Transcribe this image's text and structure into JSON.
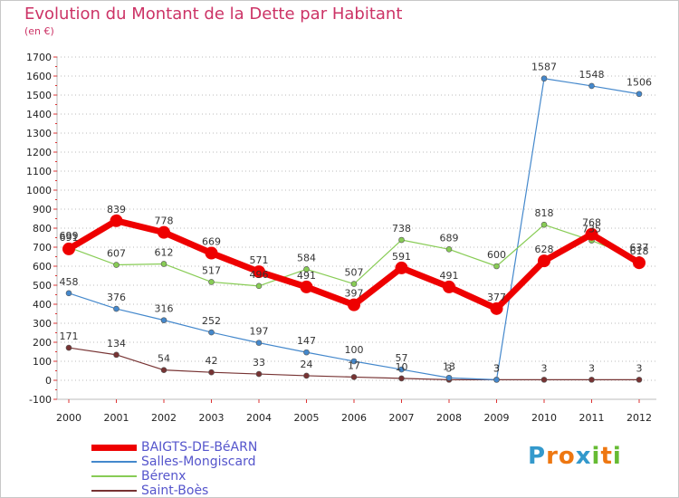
{
  "title": "Evolution du Montant de la Dette par Habitant",
  "subtitle": "(en €)",
  "logo": {
    "text": "Proxiti",
    "letters": [
      "P",
      "r",
      "o",
      "x",
      "i",
      "t",
      "i"
    ],
    "colors": [
      "#3399cc",
      "#ee7711",
      "#ee7711",
      "#3399cc",
      "#66bb33",
      "#ee7711",
      "#66bb33"
    ]
  },
  "chart_data": {
    "type": "line",
    "title": "Evolution du Montant de la Dette par Habitant",
    "subtitle": "(en €)",
    "x": [
      "2000",
      "2001",
      "2002",
      "2003",
      "2004",
      "2005",
      "2006",
      "2007",
      "2008",
      "2009",
      "2010",
      "2011",
      "2012"
    ],
    "ylim": [
      -100,
      1700
    ],
    "yticks": [
      -100,
      0,
      100,
      200,
      300,
      400,
      500,
      600,
      700,
      800,
      900,
      1000,
      1100,
      1200,
      1300,
      1400,
      1500,
      1600,
      1700
    ],
    "grid": "horizontal-dotted",
    "legend": "bottom-left",
    "series": [
      {
        "name": "BAIGTS-DE-BéARN",
        "color": "#ee0000",
        "values": [
          691,
          839,
          778,
          669,
          571,
          491,
          397,
          591,
          491,
          377,
          628,
          768,
          618
        ]
      },
      {
        "name": "Salles-Mongiscard",
        "color": "#4488cc",
        "values": [
          458,
          376,
          316,
          252,
          197,
          147,
          100,
          57,
          13,
          3,
          1587,
          1548,
          1506
        ]
      },
      {
        "name": "Bérenx",
        "color": "#88cc55",
        "values": [
          699,
          607,
          612,
          517,
          496,
          584,
          507,
          738,
          689,
          600,
          818,
          735,
          637
        ]
      },
      {
        "name": "Saint-Boès",
        "color": "#773333",
        "values": [
          171,
          134,
          54,
          42,
          33,
          24,
          17,
          10,
          3,
          3,
          3,
          3,
          3
        ]
      }
    ]
  }
}
